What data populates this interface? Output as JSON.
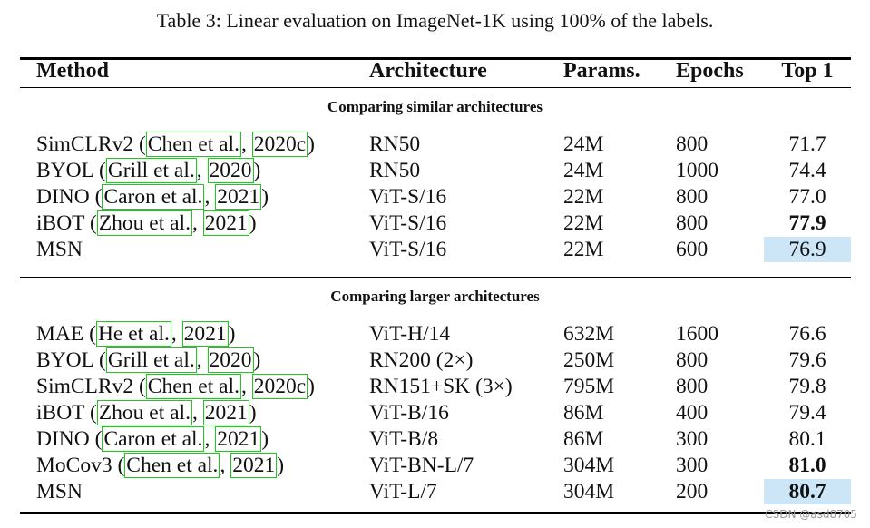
{
  "caption": "Table 3: Linear evaluation on ImageNet-1K using 100% of the labels.",
  "headers": {
    "method": "Method",
    "architecture": "Architecture",
    "params": "Params.",
    "epochs": "Epochs",
    "top1": "Top 1"
  },
  "sections": [
    {
      "title": "Comparing similar architectures",
      "rows": [
        {
          "method": "SimCLRv2",
          "cite_author": "Chen et al.",
          "cite_year": "2020c",
          "architecture": "RN50",
          "params": "24M",
          "epochs": "800",
          "top1": "71.7",
          "bold": false,
          "highlight": false
        },
        {
          "method": "BYOL",
          "cite_author": "Grill et al.",
          "cite_year": "2020",
          "architecture": "RN50",
          "params": "24M",
          "epochs": "1000",
          "top1": "74.4",
          "bold": false,
          "highlight": false
        },
        {
          "method": "DINO",
          "cite_author": "Caron et al.",
          "cite_year": "2021",
          "architecture": "ViT-S/16",
          "params": "22M",
          "epochs": "800",
          "top1": "77.0",
          "bold": false,
          "highlight": false
        },
        {
          "method": "iBOT",
          "cite_author": "Zhou et al.",
          "cite_year": "2021",
          "architecture": "ViT-S/16",
          "params": "22M",
          "epochs": "800",
          "top1": "77.9",
          "bold": true,
          "highlight": false
        },
        {
          "method": "MSN",
          "cite_author": "",
          "cite_year": "",
          "architecture": "ViT-S/16",
          "params": "22M",
          "epochs": "600",
          "top1": "76.9",
          "bold": false,
          "highlight": true
        }
      ]
    },
    {
      "title": "Comparing larger architectures",
      "rows": [
        {
          "method": "MAE",
          "cite_author": "He et al.",
          "cite_year": "2021",
          "architecture": "ViT-H/14",
          "params": "632M",
          "epochs": "1600",
          "top1": "76.6",
          "bold": false,
          "highlight": false
        },
        {
          "method": "BYOL",
          "cite_author": "Grill et al.",
          "cite_year": "2020",
          "architecture": "RN200 (2×)",
          "params": "250M",
          "epochs": "800",
          "top1": "79.6",
          "bold": false,
          "highlight": false
        },
        {
          "method": "SimCLRv2",
          "cite_author": "Chen et al.",
          "cite_year": "2020c",
          "architecture": "RN151+SK (3×)",
          "params": "795M",
          "epochs": "800",
          "top1": "79.8",
          "bold": false,
          "highlight": false
        },
        {
          "method": "iBOT",
          "cite_author": "Zhou et al.",
          "cite_year": "2021",
          "architecture": "ViT-B/16",
          "params": "86M",
          "epochs": "400",
          "top1": "79.4",
          "bold": false,
          "highlight": false
        },
        {
          "method": "DINO",
          "cite_author": "Caron et al.",
          "cite_year": "2021",
          "architecture": "ViT-B/8",
          "params": "86M",
          "epochs": "300",
          "top1": "80.1",
          "bold": false,
          "highlight": false
        },
        {
          "method": "MoCov3",
          "cite_author": "Chen et al.",
          "cite_year": "2021",
          "architecture": "ViT-BN-L/7",
          "params": "304M",
          "epochs": "300",
          "top1": "81.0",
          "bold": true,
          "highlight": false
        },
        {
          "method": "MSN",
          "cite_author": "",
          "cite_year": "",
          "architecture": "ViT-L/7",
          "params": "304M",
          "epochs": "200",
          "top1": "80.7",
          "bold": true,
          "highlight": true
        }
      ]
    }
  ],
  "watermark": "CSDN @asd8705"
}
